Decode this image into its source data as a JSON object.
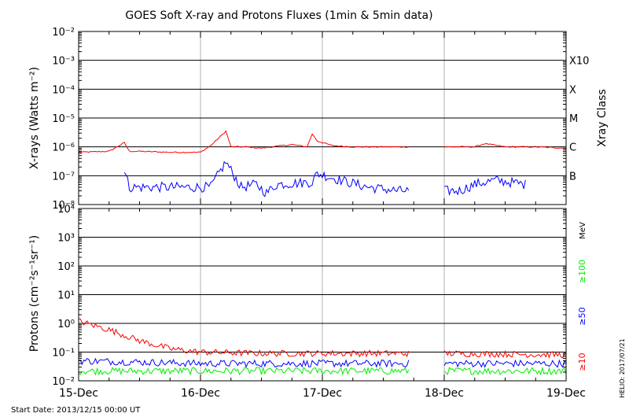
{
  "chart_data": [
    {
      "type": "line",
      "title": "GOES Soft X-ray and Protons Fluxes   (1min & 5min data)",
      "ylabel": "X-rays (Watts m⁻²)",
      "yscale": "log",
      "ylim": [
        1e-08,
        0.01
      ],
      "ytick_labels": [
        "10⁻⁸",
        "10⁻⁷",
        "10⁻⁶",
        "10⁻⁵",
        "10⁻⁴",
        "10⁻³",
        "10⁻²"
      ],
      "right_axis_title": "Xray Class",
      "class_labels": [
        "B",
        "C",
        "M",
        "X",
        "X10"
      ],
      "x_ticks": [
        "15-Dec",
        "16-Dec",
        "17-Dec",
        "18-Dec",
        "19-Dec"
      ],
      "data_gap": [
        "2013-12-17T17:00",
        "2013-12-18T00:00"
      ],
      "series": [
        {
          "color": "#ff0000",
          "x": [
            "2013-12-15T00:00",
            "2013-12-15T06:00",
            "2013-12-15T09:00",
            "2013-12-15T10:00",
            "2013-12-15T12:00",
            "2013-12-15T18:00",
            "2013-12-16T00:00",
            "2013-12-16T02:00",
            "2013-12-16T05:00",
            "2013-12-16T06:00",
            "2013-12-16T09:00",
            "2013-12-16T12:00",
            "2013-12-16T16:00",
            "2013-12-16T18:00",
            "2013-12-16T21:00",
            "2013-12-16T22:00",
            "2013-12-16T23:00",
            "2013-12-17T02:00",
            "2013-12-17T06:00",
            "2013-12-17T12:00",
            "2013-12-17T17:00",
            "2013-12-18T00:00",
            "2013-12-18T06:00",
            "2013-12-18T08:00",
            "2013-12-18T12:00",
            "2013-12-18T18:00",
            "2013-12-19T00:00"
          ],
          "y": [
            6.5e-07,
            7e-07,
            1.4e-06,
            7e-07,
            7e-07,
            6.5e-07,
            6.5e-07,
            1.1e-06,
            3.5e-06,
            1e-06,
            1e-06,
            9e-07,
            1.1e-06,
            1.2e-06,
            1e-06,
            2.8e-06,
            1.6e-06,
            1.1e-06,
            1e-06,
            1e-06,
            1e-06,
            1e-06,
            1e-06,
            1.3e-06,
            1e-06,
            1e-06,
            9e-07
          ]
        },
        {
          "color": "#0000ff",
          "x": [
            "2013-12-15T09:00",
            "2013-12-15T10:00",
            "2013-12-15T18:00",
            "2013-12-16T02:00",
            "2013-12-16T05:00",
            "2013-12-16T08:00",
            "2013-12-16T11:00",
            "2013-12-16T13:00",
            "2013-12-16T15:00",
            "2013-12-16T22:00",
            "2013-12-16T23:00",
            "2013-12-17T05:00",
            "2013-12-17T09:00",
            "2013-12-17T15:00",
            "2013-12-18T03:00",
            "2013-12-18T06:00",
            "2013-12-18T10:00",
            "2013-12-18T16:00"
          ],
          "y": [
            1.5e-07,
            4e-08,
            4e-08,
            4e-08,
            3e-07,
            4e-08,
            5e-08,
            2.5e-08,
            5e-08,
            6e-08,
            1.2e-07,
            6e-08,
            4e-08,
            3e-08,
            3e-08,
            5e-08,
            7e-08,
            5e-08
          ]
        }
      ]
    },
    {
      "type": "line",
      "ylabel": "Protons (cm⁻²s⁻¹sr⁻¹)",
      "yscale": "log",
      "ylim": [
        0.01,
        10000
      ],
      "ytick_labels": [
        "10⁻²",
        "10⁻¹",
        "10⁰",
        "10¹",
        "10²",
        "10³",
        "10⁴"
      ],
      "reference_line": 10,
      "units_label": "MeV",
      "x_ticks": [
        "15-Dec",
        "16-Dec",
        "17-Dec",
        "18-Dec",
        "19-Dec"
      ],
      "data_gap": [
        "2013-12-17T17:00",
        "2013-12-18T00:00"
      ],
      "series": [
        {
          "name": "≥10",
          "color": "#ff0000",
          "x": [
            "2013-12-15T00:00",
            "2013-12-15T06:00",
            "2013-12-15T12:00",
            "2013-12-15T18:00",
            "2013-12-16T00:00",
            "2013-12-16T12:00",
            "2013-12-17T00:00",
            "2013-12-17T12:00",
            "2013-12-17T17:00",
            "2013-12-18T00:00",
            "2013-12-18T12:00",
            "2013-12-19T00:00"
          ],
          "y": [
            1.2,
            0.6,
            0.25,
            0.13,
            0.1,
            0.09,
            0.09,
            0.09,
            0.09,
            0.09,
            0.085,
            0.08
          ]
        },
        {
          "name": "≥50",
          "color": "#0000ff",
          "x": [
            "2013-12-15T00:00",
            "2013-12-16T00:00",
            "2013-12-17T00:00",
            "2013-12-17T17:00",
            "2013-12-18T00:00",
            "2013-12-19T00:00"
          ],
          "y": [
            0.05,
            0.04,
            0.04,
            0.04,
            0.04,
            0.04
          ]
        },
        {
          "name": "≥100",
          "color": "#00ee00",
          "x": [
            "2013-12-15T00:00",
            "2013-12-16T00:00",
            "2013-12-17T00:00",
            "2013-12-17T17:00",
            "2013-12-18T00:00",
            "2013-12-19T00:00"
          ],
          "y": [
            0.022,
            0.022,
            0.022,
            0.022,
            0.022,
            0.022
          ]
        }
      ]
    }
  ],
  "footer": {
    "start_date": "Start Date: 2013/12/15 00:00 UT",
    "credit": "HELIO: 2017/07/21"
  }
}
